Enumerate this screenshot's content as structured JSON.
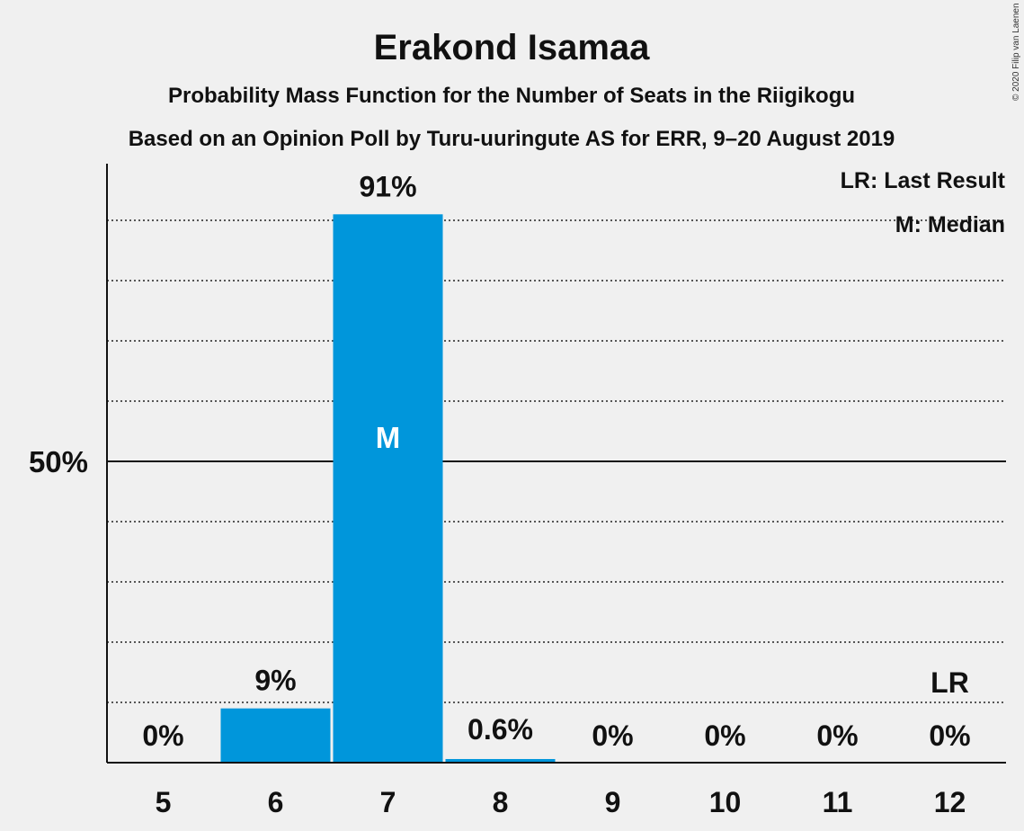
{
  "chart_data": {
    "type": "bar",
    "title": "Erakond Isamaa",
    "subtitle": "Probability Mass Function for the Number of Seats in the Riigikogu",
    "subtitle2": "Based on an Opinion Poll by Turu-uuringute AS for ERR, 9–20 August 2019",
    "categories": [
      "5",
      "6",
      "7",
      "8",
      "9",
      "10",
      "11",
      "12"
    ],
    "values": [
      0,
      9,
      91,
      0.6,
      0,
      0,
      0,
      0
    ],
    "value_labels": [
      "0%",
      "9%",
      "91%",
      "0.6%",
      "0%",
      "0%",
      "0%",
      "0%"
    ],
    "ylim": [
      0,
      100
    ],
    "y_tick_label": "50%",
    "y_tick_value": 50,
    "gridline_step": 10,
    "grid": "dotted",
    "median_category": "7",
    "median_marker": "M",
    "last_result_category": "12",
    "last_result_marker": "LR",
    "legend": [
      "LR: Last Result",
      "M: Median"
    ],
    "legend_position": "top-right",
    "bar_color": "#0096db",
    "copyright": "© 2020 Filip van Laenen"
  }
}
